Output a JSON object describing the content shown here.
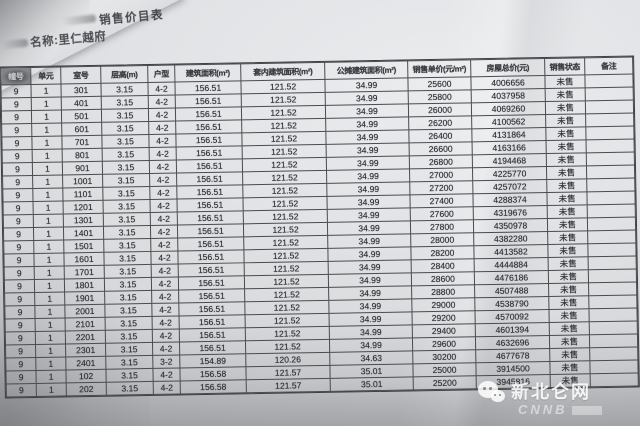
{
  "document": {
    "title_fragment": "销售价目表",
    "project_line": "名称:里仁越府"
  },
  "table": {
    "columns": [
      "幢号",
      "单元",
      "室号",
      "层高(m)",
      "户型",
      "建筑面积(m²)",
      "套内建筑面积(m²)",
      "公摊建筑面积(m²)",
      "销售单价(元/m²)",
      "房屋总价(元)",
      "销售状态",
      "备注"
    ],
    "rows": [
      [
        "9",
        "1",
        "301",
        "3.15",
        "4-2",
        "156.51",
        "121.52",
        "34.99",
        "25600",
        "4006656",
        "未售",
        ""
      ],
      [
        "9",
        "1",
        "401",
        "3.15",
        "4-2",
        "156.51",
        "121.52",
        "34.99",
        "25800",
        "4037958",
        "未售",
        ""
      ],
      [
        "9",
        "1",
        "501",
        "3.15",
        "4-2",
        "156.51",
        "121.52",
        "34.99",
        "26000",
        "4069260",
        "未售",
        ""
      ],
      [
        "9",
        "1",
        "601",
        "3.15",
        "4-2",
        "156.51",
        "121.52",
        "34.99",
        "26200",
        "4100562",
        "未售",
        ""
      ],
      [
        "9",
        "1",
        "701",
        "3.15",
        "4-2",
        "156.51",
        "121.52",
        "34.99",
        "26400",
        "4131864",
        "未售",
        ""
      ],
      [
        "9",
        "1",
        "801",
        "3.15",
        "4-2",
        "156.51",
        "121.52",
        "34.99",
        "26600",
        "4163166",
        "未售",
        ""
      ],
      [
        "9",
        "1",
        "901",
        "3.15",
        "4-2",
        "156.51",
        "121.52",
        "34.99",
        "26800",
        "4194468",
        "未售",
        ""
      ],
      [
        "9",
        "1",
        "1001",
        "3.15",
        "4-2",
        "156.51",
        "121.52",
        "34.99",
        "27000",
        "4225770",
        "未售",
        ""
      ],
      [
        "9",
        "1",
        "1101",
        "3.15",
        "4-2",
        "156.51",
        "121.52",
        "34.99",
        "27200",
        "4257072",
        "未售",
        ""
      ],
      [
        "9",
        "1",
        "1201",
        "3.15",
        "4-2",
        "156.51",
        "121.52",
        "34.99",
        "27400",
        "4288374",
        "未售",
        ""
      ],
      [
        "9",
        "1",
        "1301",
        "3.15",
        "4-2",
        "156.51",
        "121.52",
        "34.99",
        "27600",
        "4319676",
        "未售",
        ""
      ],
      [
        "9",
        "1",
        "1401",
        "3.15",
        "4-2",
        "156.51",
        "121.52",
        "34.99",
        "27800",
        "4350978",
        "未售",
        ""
      ],
      [
        "9",
        "1",
        "1501",
        "3.15",
        "4-2",
        "156.51",
        "121.52",
        "34.99",
        "28000",
        "4382280",
        "未售",
        ""
      ],
      [
        "9",
        "1",
        "1601",
        "3.15",
        "4-2",
        "156.51",
        "121.52",
        "34.99",
        "28200",
        "4413582",
        "未售",
        ""
      ],
      [
        "9",
        "1",
        "1701",
        "3.15",
        "4-2",
        "156.51",
        "121.52",
        "34.99",
        "28400",
        "4444884",
        "未售",
        ""
      ],
      [
        "9",
        "1",
        "1801",
        "3.15",
        "4-2",
        "156.51",
        "121.52",
        "34.99",
        "28600",
        "4476186",
        "未售",
        ""
      ],
      [
        "9",
        "1",
        "1901",
        "3.15",
        "4-2",
        "156.51",
        "121.52",
        "34.99",
        "28800",
        "4507488",
        "未售",
        ""
      ],
      [
        "9",
        "1",
        "2001",
        "3.15",
        "4-2",
        "156.51",
        "121.52",
        "34.99",
        "29000",
        "4538790",
        "未售",
        ""
      ],
      [
        "9",
        "1",
        "2101",
        "3.15",
        "4-2",
        "156.51",
        "121.52",
        "34.99",
        "29200",
        "4570092",
        "未售",
        ""
      ],
      [
        "9",
        "1",
        "2201",
        "3.15",
        "4-2",
        "156.51",
        "121.52",
        "34.99",
        "29400",
        "4601394",
        "未售",
        ""
      ],
      [
        "9",
        "1",
        "2301",
        "3.15",
        "4-2",
        "156.51",
        "121.52",
        "34.99",
        "29600",
        "4632696",
        "未售",
        ""
      ],
      [
        "9",
        "1",
        "2401",
        "3.15",
        "3-2",
        "154.89",
        "120.26",
        "34.63",
        "30200",
        "4677678",
        "未售",
        ""
      ],
      [
        "9",
        "1",
        "102",
        "3.15",
        "4-2",
        "156.58",
        "121.57",
        "35.01",
        "25000",
        "3914500",
        "未售",
        ""
      ],
      [
        "9",
        "1",
        "202",
        "3.15",
        "4-2",
        "156.58",
        "121.57",
        "35.01",
        "25200",
        "3945816",
        "未售",
        ""
      ]
    ]
  },
  "watermark": {
    "site_name": "新北仑网",
    "logo_text": "CNNB",
    "icon": "wechat-icon"
  },
  "colors": {
    "paper": "#dfe1e4",
    "table_line": "#4a4b50",
    "text": "#313237",
    "watermark": "#ffffff"
  }
}
